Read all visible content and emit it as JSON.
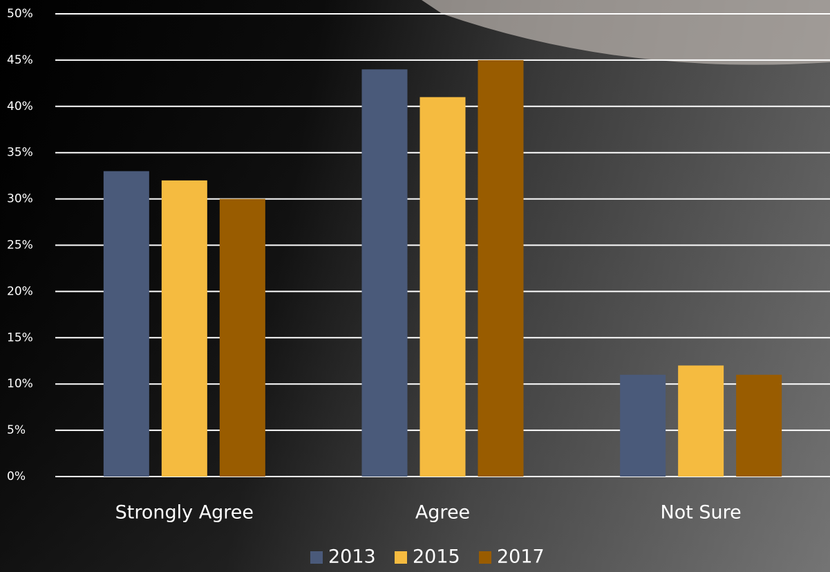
{
  "chart_data": {
    "type": "bar",
    "categories": [
      "Strongly Agree",
      "Agree",
      "Not Sure"
    ],
    "series": [
      {
        "name": "2013",
        "color": "#4a5a7a",
        "values": [
          33,
          44,
          11
        ]
      },
      {
        "name": "2015",
        "color": "#f5bb40",
        "values": [
          32,
          41,
          12
        ]
      },
      {
        "name": "2017",
        "color": "#995c00",
        "values": [
          30,
          45,
          11
        ]
      }
    ],
    "ylim": [
      0,
      50
    ],
    "yticks": [
      {
        "value": 0,
        "label": "0%"
      },
      {
        "value": 5,
        "label": "5%"
      },
      {
        "value": 10,
        "label": "10%"
      },
      {
        "value": 15,
        "label": "15%"
      },
      {
        "value": 20,
        "label": "20%"
      },
      {
        "value": 25,
        "label": "25%"
      },
      {
        "value": 30,
        "label": "30%"
      },
      {
        "value": 35,
        "label": "35%"
      },
      {
        "value": 40,
        "label": "40%"
      },
      {
        "value": 45,
        "label": "45%"
      },
      {
        "value": 50,
        "label": "50%"
      }
    ],
    "grid": true
  }
}
